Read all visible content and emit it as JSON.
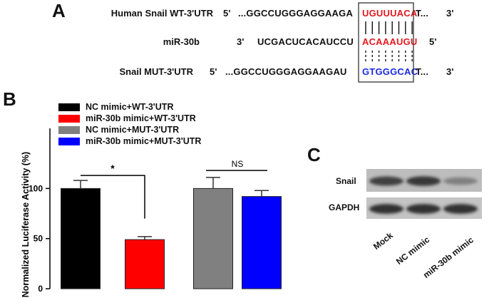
{
  "panelA": {
    "letter": "A",
    "rows": [
      {
        "label": "Human Snail WT-3'UTR",
        "end5": "5'",
        "seq": "...GGCCUGGGAGGAAGA",
        "site": "UGUUUACA",
        "tail": "T...",
        "end3": "3'",
        "site_color": "red"
      },
      {
        "label": "miR-30b",
        "end5": "3'",
        "seq": "UCGACUCACAUCCU",
        "site": "ACAAAUGU",
        "tail": "",
        "end3": "5'",
        "site_color": "red"
      },
      {
        "label": "Snail MUT-3'UTR",
        "end5": "5'",
        "seq": "...GGCCUGGGAGGAAGAU",
        "site": "GTGGGCAC",
        "tail": "T...",
        "end3": "3'",
        "site_color": "blue"
      }
    ]
  },
  "panelB": {
    "letter": "B",
    "chart_data": {
      "type": "bar",
      "categories": [
        "NC mimic+WT-3'UTR",
        "miR-30b mimic+WT-3'UTR",
        "NC mimic+MUT-3'UTR",
        "miR-30b mimic+MUT-3'UTR"
      ],
      "values": [
        100,
        49,
        100,
        92
      ],
      "errors": [
        8,
        3,
        11,
        6
      ],
      "colors": [
        "#000000",
        "#ff0000",
        "#808080",
        "#0000ff"
      ],
      "ylabel": "Normalized Luciferase Activity (%)",
      "ylim": [
        0,
        160
      ],
      "yticks": [
        0,
        50,
        100
      ],
      "legend_position": "top-left",
      "annotations": [
        {
          "text": "*",
          "from": 0,
          "to": 1
        },
        {
          "text": "NS",
          "from": 2,
          "to": 3
        }
      ]
    }
  },
  "panelC": {
    "letter": "C",
    "bands": [
      "Snail",
      "GAPDH"
    ],
    "lanes": [
      "Mock",
      "NC mimic",
      "miR-30b mimic"
    ],
    "snail_intensity": [
      0.85,
      0.9,
      0.45
    ],
    "gapdh_intensity": [
      0.95,
      0.95,
      0.95
    ]
  }
}
